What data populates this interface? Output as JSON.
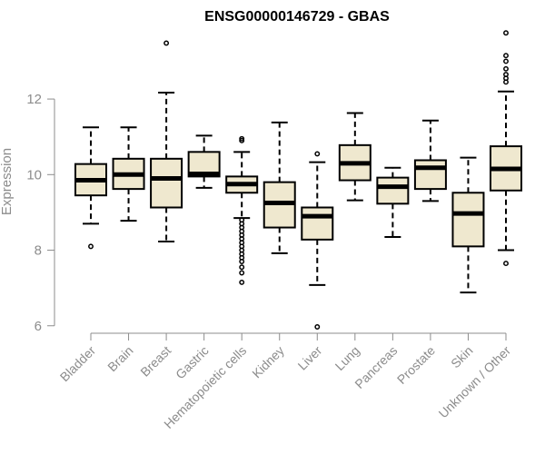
{
  "chart_data": {
    "type": "boxplot",
    "title": "ENSG00000146729 - GBAS",
    "xlabel": "",
    "ylabel": "Expression",
    "ylim": [
      5.85,
      13.9
    ],
    "yticks": [
      6,
      8,
      10,
      12
    ],
    "ytick_labels": [
      "6",
      "8",
      "10",
      "12"
    ],
    "colors": {
      "box_fill": "#efe8cf",
      "box_stroke": "#000000",
      "axis": "#8c8c8c"
    },
    "categories": [
      "Bladder",
      "Brain",
      "Breast",
      "Gastric",
      "Hematopoietic cells",
      "Kidney",
      "Liver",
      "Lung",
      "Pancreas",
      "Prostate",
      "Skin",
      "Unknown / Other"
    ],
    "boxes": [
      {
        "category": "Bladder",
        "whisker_low": 8.7,
        "q1": 9.45,
        "median": 9.85,
        "q3": 10.28,
        "whisker_high": 11.25,
        "outliers": [
          8.1
        ]
      },
      {
        "category": "Brain",
        "whisker_low": 8.78,
        "q1": 9.62,
        "median": 10.0,
        "q3": 10.42,
        "whisker_high": 11.25,
        "outliers": []
      },
      {
        "category": "Breast",
        "whisker_low": 8.23,
        "q1": 9.13,
        "median": 9.9,
        "q3": 10.42,
        "whisker_high": 12.17,
        "outliers": [
          13.48
        ]
      },
      {
        "category": "Gastric",
        "whisker_low": 9.65,
        "q1": 9.95,
        "median": 10.02,
        "q3": 10.6,
        "whisker_high": 11.03,
        "outliers": []
      },
      {
        "category": "Hematopoietic cells",
        "whisker_low": 8.85,
        "q1": 9.52,
        "median": 9.75,
        "q3": 9.95,
        "whisker_high": 10.6,
        "outliers": [
          10.9,
          10.95,
          8.8,
          8.7,
          8.6,
          8.5,
          8.4,
          8.3,
          8.2,
          8.1,
          8.0,
          7.9,
          7.8,
          7.7,
          7.55,
          7.4,
          7.15
        ]
      },
      {
        "category": "Kidney",
        "whisker_low": 7.92,
        "q1": 8.6,
        "median": 9.25,
        "q3": 9.8,
        "whisker_high": 11.38,
        "outliers": []
      },
      {
        "category": "Liver",
        "whisker_low": 7.08,
        "q1": 8.28,
        "median": 8.9,
        "q3": 9.13,
        "whisker_high": 10.33,
        "outliers": [
          10.55,
          5.97
        ]
      },
      {
        "category": "Lung",
        "whisker_low": 9.32,
        "q1": 9.85,
        "median": 10.3,
        "q3": 10.78,
        "whisker_high": 11.63,
        "outliers": []
      },
      {
        "category": "Pancreas",
        "whisker_low": 8.35,
        "q1": 9.23,
        "median": 9.68,
        "q3": 9.92,
        "whisker_high": 10.18,
        "outliers": []
      },
      {
        "category": "Prostate",
        "whisker_low": 9.3,
        "q1": 9.62,
        "median": 10.18,
        "q3": 10.38,
        "whisker_high": 11.43,
        "outliers": []
      },
      {
        "category": "Skin",
        "whisker_low": 6.88,
        "q1": 8.1,
        "median": 8.97,
        "q3": 9.52,
        "whisker_high": 10.45,
        "outliers": []
      },
      {
        "category": "Unknown / Other",
        "whisker_low": 8.0,
        "q1": 9.58,
        "median": 10.15,
        "q3": 10.75,
        "whisker_high": 12.2,
        "outliers": [
          13.75,
          13.15,
          13.0,
          12.8,
          12.65,
          12.55,
          12.45,
          7.65
        ]
      }
    ]
  }
}
